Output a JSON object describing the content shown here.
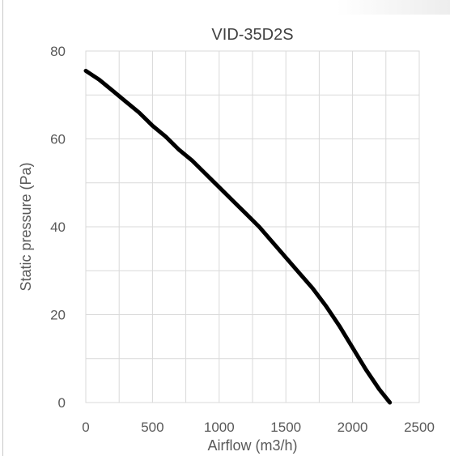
{
  "chart_data": {
    "type": "line",
    "title": "VID-35D2S",
    "xlabel": "Airflow (m3/h)",
    "ylabel": "Static pressure (Pa)",
    "xlim": [
      0,
      2500
    ],
    "ylim": [
      0,
      80
    ],
    "x_ticks": [
      0,
      500,
      1000,
      1500,
      2000,
      2500
    ],
    "y_ticks": [
      0,
      20,
      40,
      60,
      80
    ],
    "grid": true,
    "minor_x_grid": true,
    "legend": "none",
    "series": [
      {
        "color": "#000000",
        "points": [
          [
            0,
            75.5
          ],
          [
            100,
            73.5
          ],
          [
            200,
            71.0
          ],
          [
            300,
            68.5
          ],
          [
            400,
            66.0
          ],
          [
            500,
            63.0
          ],
          [
            600,
            60.5
          ],
          [
            700,
            57.5
          ],
          [
            800,
            55.0
          ],
          [
            900,
            52.0
          ],
          [
            1000,
            49.0
          ],
          [
            1100,
            46.0
          ],
          [
            1200,
            43.0
          ],
          [
            1300,
            40.0
          ],
          [
            1400,
            36.5
          ],
          [
            1500,
            33.0
          ],
          [
            1600,
            29.5
          ],
          [
            1700,
            26.0
          ],
          [
            1800,
            22.0
          ],
          [
            1900,
            17.5
          ],
          [
            2000,
            12.5
          ],
          [
            2100,
            7.5
          ],
          [
            2200,
            3.0
          ],
          [
            2280,
            0.0
          ]
        ]
      }
    ]
  }
}
